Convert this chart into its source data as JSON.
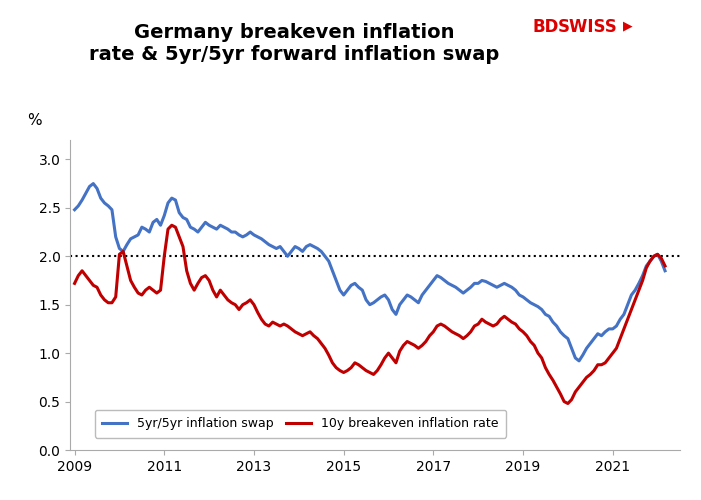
{
  "title_line1": "Germany breakeven inflation",
  "title_line2": "rate & 5yr/5yr forward inflation swap",
  "ylabel": "%",
  "ylim": [
    0.0,
    3.2
  ],
  "yticks": [
    0.0,
    0.5,
    1.0,
    1.5,
    2.0,
    2.5,
    3.0
  ],
  "hline_y": 2.0,
  "background_color": "#ffffff",
  "blue_color": "#4472c4",
  "red_color": "#c00000",
  "legend_blue": "5yr/5yr inflation swap",
  "legend_red": "10y breakeven inflation rate",
  "bdswiss_black": "BDSWISS",
  "bdswiss_red": "★",
  "blue_series": {
    "dates": [
      2009.0,
      2009.083,
      2009.167,
      2009.25,
      2009.333,
      2009.417,
      2009.5,
      2009.583,
      2009.667,
      2009.75,
      2009.833,
      2009.917,
      2010.0,
      2010.083,
      2010.167,
      2010.25,
      2010.333,
      2010.417,
      2010.5,
      2010.583,
      2010.667,
      2010.75,
      2010.833,
      2010.917,
      2011.0,
      2011.083,
      2011.167,
      2011.25,
      2011.333,
      2011.417,
      2011.5,
      2011.583,
      2011.667,
      2011.75,
      2011.833,
      2011.917,
      2012.0,
      2012.083,
      2012.167,
      2012.25,
      2012.333,
      2012.417,
      2012.5,
      2012.583,
      2012.667,
      2012.75,
      2012.833,
      2012.917,
      2013.0,
      2013.083,
      2013.167,
      2013.25,
      2013.333,
      2013.417,
      2013.5,
      2013.583,
      2013.667,
      2013.75,
      2013.833,
      2013.917,
      2014.0,
      2014.083,
      2014.167,
      2014.25,
      2014.333,
      2014.417,
      2014.5,
      2014.583,
      2014.667,
      2014.75,
      2014.833,
      2014.917,
      2015.0,
      2015.083,
      2015.167,
      2015.25,
      2015.333,
      2015.417,
      2015.5,
      2015.583,
      2015.667,
      2015.75,
      2015.833,
      2015.917,
      2016.0,
      2016.083,
      2016.167,
      2016.25,
      2016.333,
      2016.417,
      2016.5,
      2016.583,
      2016.667,
      2016.75,
      2016.833,
      2016.917,
      2017.0,
      2017.083,
      2017.167,
      2017.25,
      2017.333,
      2017.417,
      2017.5,
      2017.583,
      2017.667,
      2017.75,
      2017.833,
      2017.917,
      2018.0,
      2018.083,
      2018.167,
      2018.25,
      2018.333,
      2018.417,
      2018.5,
      2018.583,
      2018.667,
      2018.75,
      2018.833,
      2018.917,
      2019.0,
      2019.083,
      2019.167,
      2019.25,
      2019.333,
      2019.417,
      2019.5,
      2019.583,
      2019.667,
      2019.75,
      2019.833,
      2019.917,
      2020.0,
      2020.083,
      2020.167,
      2020.25,
      2020.333,
      2020.417,
      2020.5,
      2020.583,
      2020.667,
      2020.75,
      2020.833,
      2020.917,
      2021.0,
      2021.083,
      2021.167,
      2021.25,
      2021.333,
      2021.417,
      2021.5,
      2021.583,
      2021.667,
      2021.75,
      2021.833,
      2021.917,
      2022.0,
      2022.083,
      2022.167
    ],
    "values": [
      2.48,
      2.52,
      2.58,
      2.65,
      2.72,
      2.75,
      2.7,
      2.6,
      2.55,
      2.52,
      2.48,
      2.2,
      2.08,
      2.05,
      2.12,
      2.18,
      2.2,
      2.22,
      2.3,
      2.28,
      2.25,
      2.35,
      2.38,
      2.32,
      2.42,
      2.55,
      2.6,
      2.58,
      2.45,
      2.4,
      2.38,
      2.3,
      2.28,
      2.25,
      2.3,
      2.35,
      2.32,
      2.3,
      2.28,
      2.32,
      2.3,
      2.28,
      2.25,
      2.25,
      2.22,
      2.2,
      2.22,
      2.25,
      2.22,
      2.2,
      2.18,
      2.15,
      2.12,
      2.1,
      2.08,
      2.1,
      2.05,
      2.0,
      2.05,
      2.1,
      2.08,
      2.05,
      2.1,
      2.12,
      2.1,
      2.08,
      2.05,
      2.0,
      1.95,
      1.85,
      1.75,
      1.65,
      1.6,
      1.65,
      1.7,
      1.72,
      1.68,
      1.65,
      1.55,
      1.5,
      1.52,
      1.55,
      1.58,
      1.6,
      1.55,
      1.45,
      1.4,
      1.5,
      1.55,
      1.6,
      1.58,
      1.55,
      1.52,
      1.6,
      1.65,
      1.7,
      1.75,
      1.8,
      1.78,
      1.75,
      1.72,
      1.7,
      1.68,
      1.65,
      1.62,
      1.65,
      1.68,
      1.72,
      1.72,
      1.75,
      1.74,
      1.72,
      1.7,
      1.68,
      1.7,
      1.72,
      1.7,
      1.68,
      1.65,
      1.6,
      1.58,
      1.55,
      1.52,
      1.5,
      1.48,
      1.45,
      1.4,
      1.38,
      1.32,
      1.28,
      1.22,
      1.18,
      1.15,
      1.05,
      0.95,
      0.92,
      0.98,
      1.05,
      1.1,
      1.15,
      1.2,
      1.18,
      1.22,
      1.25,
      1.25,
      1.28,
      1.35,
      1.4,
      1.5,
      1.6,
      1.65,
      1.72,
      1.8,
      1.9,
      1.95,
      2.0,
      2.02,
      1.95,
      1.85
    ]
  },
  "red_series": {
    "dates": [
      2009.0,
      2009.083,
      2009.167,
      2009.25,
      2009.333,
      2009.417,
      2009.5,
      2009.583,
      2009.667,
      2009.75,
      2009.833,
      2009.917,
      2010.0,
      2010.083,
      2010.167,
      2010.25,
      2010.333,
      2010.417,
      2010.5,
      2010.583,
      2010.667,
      2010.75,
      2010.833,
      2010.917,
      2011.0,
      2011.083,
      2011.167,
      2011.25,
      2011.333,
      2011.417,
      2011.5,
      2011.583,
      2011.667,
      2011.75,
      2011.833,
      2011.917,
      2012.0,
      2012.083,
      2012.167,
      2012.25,
      2012.333,
      2012.417,
      2012.5,
      2012.583,
      2012.667,
      2012.75,
      2012.833,
      2012.917,
      2013.0,
      2013.083,
      2013.167,
      2013.25,
      2013.333,
      2013.417,
      2013.5,
      2013.583,
      2013.667,
      2013.75,
      2013.833,
      2013.917,
      2014.0,
      2014.083,
      2014.167,
      2014.25,
      2014.333,
      2014.417,
      2014.5,
      2014.583,
      2014.667,
      2014.75,
      2014.833,
      2014.917,
      2015.0,
      2015.083,
      2015.167,
      2015.25,
      2015.333,
      2015.417,
      2015.5,
      2015.583,
      2015.667,
      2015.75,
      2015.833,
      2015.917,
      2016.0,
      2016.083,
      2016.167,
      2016.25,
      2016.333,
      2016.417,
      2016.5,
      2016.583,
      2016.667,
      2016.75,
      2016.833,
      2016.917,
      2017.0,
      2017.083,
      2017.167,
      2017.25,
      2017.333,
      2017.417,
      2017.5,
      2017.583,
      2017.667,
      2017.75,
      2017.833,
      2017.917,
      2018.0,
      2018.083,
      2018.167,
      2018.25,
      2018.333,
      2018.417,
      2018.5,
      2018.583,
      2018.667,
      2018.75,
      2018.833,
      2018.917,
      2019.0,
      2019.083,
      2019.167,
      2019.25,
      2019.333,
      2019.417,
      2019.5,
      2019.583,
      2019.667,
      2019.75,
      2019.833,
      2019.917,
      2020.0,
      2020.083,
      2020.167,
      2020.25,
      2020.333,
      2020.417,
      2020.5,
      2020.583,
      2020.667,
      2020.75,
      2020.833,
      2020.917,
      2021.0,
      2021.083,
      2021.167,
      2021.25,
      2021.333,
      2021.417,
      2021.5,
      2021.583,
      2021.667,
      2021.75,
      2021.833,
      2021.917,
      2022.0,
      2022.083,
      2022.167
    ],
    "values": [
      1.72,
      1.8,
      1.85,
      1.8,
      1.75,
      1.7,
      1.68,
      1.6,
      1.55,
      1.52,
      1.52,
      1.58,
      2.02,
      2.05,
      1.9,
      1.75,
      1.68,
      1.62,
      1.6,
      1.65,
      1.68,
      1.65,
      1.62,
      1.65,
      2.0,
      2.28,
      2.32,
      2.3,
      2.2,
      2.1,
      1.85,
      1.72,
      1.65,
      1.72,
      1.78,
      1.8,
      1.75,
      1.65,
      1.58,
      1.65,
      1.6,
      1.55,
      1.52,
      1.5,
      1.45,
      1.5,
      1.52,
      1.55,
      1.5,
      1.42,
      1.35,
      1.3,
      1.28,
      1.32,
      1.3,
      1.28,
      1.3,
      1.28,
      1.25,
      1.22,
      1.2,
      1.18,
      1.2,
      1.22,
      1.18,
      1.15,
      1.1,
      1.05,
      0.98,
      0.9,
      0.85,
      0.82,
      0.8,
      0.82,
      0.85,
      0.9,
      0.88,
      0.85,
      0.82,
      0.8,
      0.78,
      0.82,
      0.88,
      0.95,
      1.0,
      0.95,
      0.9,
      1.02,
      1.08,
      1.12,
      1.1,
      1.08,
      1.05,
      1.08,
      1.12,
      1.18,
      1.22,
      1.28,
      1.3,
      1.28,
      1.25,
      1.22,
      1.2,
      1.18,
      1.15,
      1.18,
      1.22,
      1.28,
      1.3,
      1.35,
      1.32,
      1.3,
      1.28,
      1.3,
      1.35,
      1.38,
      1.35,
      1.32,
      1.3,
      1.25,
      1.22,
      1.18,
      1.12,
      1.08,
      1.0,
      0.95,
      0.85,
      0.78,
      0.72,
      0.65,
      0.58,
      0.5,
      0.48,
      0.52,
      0.6,
      0.65,
      0.7,
      0.75,
      0.78,
      0.82,
      0.88,
      0.88,
      0.9,
      0.95,
      1.0,
      1.05,
      1.15,
      1.25,
      1.35,
      1.45,
      1.55,
      1.65,
      1.75,
      1.88,
      1.95,
      2.0,
      2.02,
      1.98,
      1.9
    ]
  },
  "xticks": [
    2009,
    2011,
    2013,
    2015,
    2017,
    2019,
    2021
  ],
  "xlim": [
    2008.9,
    2022.5
  ],
  "title_fontsize": 14,
  "tick_fontsize": 10,
  "legend_fontsize": 9,
  "linewidth": 2.2
}
